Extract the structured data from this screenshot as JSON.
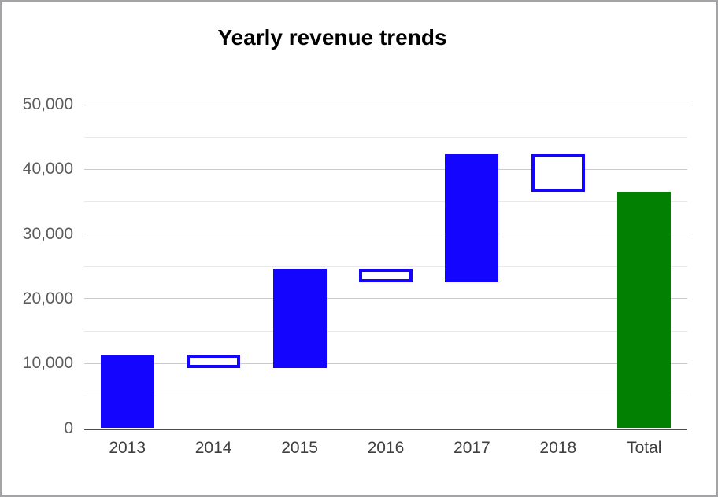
{
  "chart_data": {
    "type": "waterfall",
    "title": "Yearly revenue trends",
    "categories": [
      "2013",
      "2014",
      "2015",
      "2016",
      "2017",
      "2018",
      "Total"
    ],
    "items": [
      {
        "label": "2013",
        "delta": 11400,
        "start": 0,
        "end": 11400,
        "style": "increase"
      },
      {
        "label": "2014",
        "delta": -2100,
        "start": 11400,
        "end": 9300,
        "style": "decrease"
      },
      {
        "label": "2015",
        "delta": 15300,
        "start": 9300,
        "end": 24600,
        "style": "increase"
      },
      {
        "label": "2016",
        "delta": -2100,
        "start": 24600,
        "end": 22500,
        "style": "decrease"
      },
      {
        "label": "2017",
        "delta": 19800,
        "start": 22500,
        "end": 42300,
        "style": "increase"
      },
      {
        "label": "2018",
        "delta": -5800,
        "start": 42300,
        "end": 36500,
        "style": "decrease"
      },
      {
        "label": "Total",
        "delta": 36500,
        "start": 0,
        "end": 36500,
        "style": "total"
      }
    ],
    "ylim": [
      0,
      50000
    ],
    "y_major_step": 10000,
    "y_minor_step": 5000,
    "y_ticks": [
      {
        "value": 0,
        "label": "0"
      },
      {
        "value": 10000,
        "label": "10,000"
      },
      {
        "value": 20000,
        "label": "20,000"
      },
      {
        "value": 30000,
        "label": "30,000"
      },
      {
        "value": 40000,
        "label": "40,000"
      },
      {
        "value": 50000,
        "label": "50,000"
      }
    ],
    "xlabel": "",
    "ylabel": "",
    "grid": "on",
    "legend": "none",
    "colors": {
      "increase_fill": "#1405ff",
      "decrease_fill": "#ffffff",
      "decrease_border": "#1405ff",
      "total_fill": "#028002",
      "grid_major": "#cccccc",
      "grid_minor": "#e9e9e9",
      "axis_line": "#4d4d4d",
      "y_label_text": "#5c5c5c",
      "x_label_text": "#3f3f3f",
      "title_text": "#000000",
      "frame_border": "#a3a3a8",
      "background": "#ffffff"
    }
  }
}
